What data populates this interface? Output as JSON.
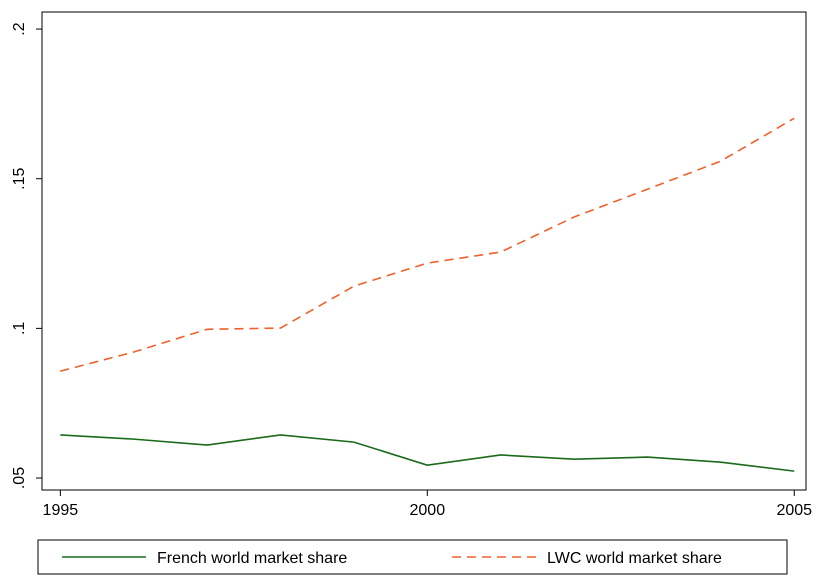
{
  "chart_data": {
    "type": "line",
    "x": [
      1995,
      1996,
      1997,
      1998,
      1999,
      2000,
      2001,
      2002,
      2003,
      2004,
      2005
    ],
    "series": [
      {
        "name": "French world market share",
        "color": "#1a6b1a",
        "dashed": false,
        "values": [
          0.0644,
          0.063,
          0.061,
          0.0644,
          0.062,
          0.0543,
          0.0577,
          0.0563,
          0.057,
          0.0553,
          0.0523
        ]
      },
      {
        "name": "LWC world market share",
        "color": "#f0602a",
        "dashed": true,
        "values": [
          0.0857,
          0.0921,
          0.0997,
          0.1001,
          0.1141,
          0.1218,
          0.1255,
          0.1372,
          0.1465,
          0.1559,
          0.1702
        ]
      }
    ],
    "xlim": [
      1994.75,
      2005.16
    ],
    "xticks": [
      1995,
      2000,
      2005
    ],
    "ylim": [
      0.046,
      0.2057
    ],
    "yticks": [
      {
        "value": 0.05,
        "label": ".05"
      },
      {
        "value": 0.1,
        "label": ".1"
      },
      {
        "value": 0.15,
        "label": ".15"
      },
      {
        "value": 0.2,
        "label": ".2"
      }
    ],
    "grid": false,
    "legend": "bottom"
  }
}
